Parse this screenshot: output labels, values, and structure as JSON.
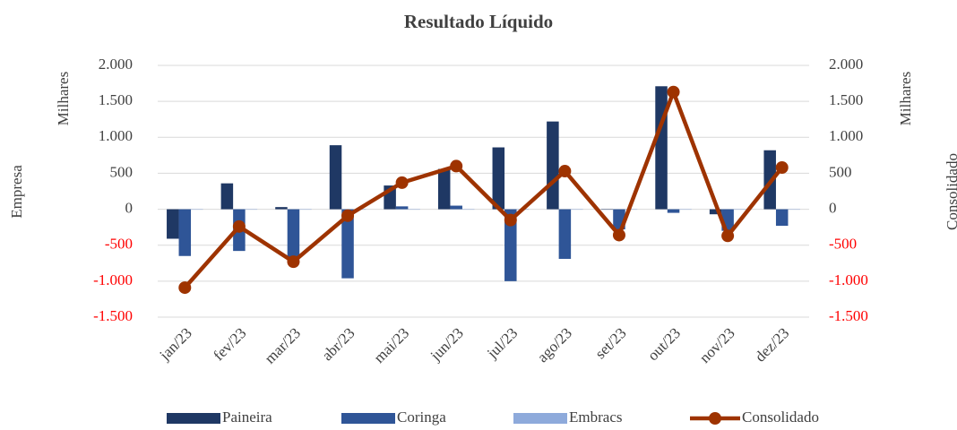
{
  "chart_data": {
    "type": "bar",
    "title": "Resultado Líquido",
    "ylabel": "Empresa",
    "y_unit": "Milhares",
    "y2label": "Consolidado",
    "y2_unit": "Milhares",
    "categories": [
      "jan/23",
      "fev/23",
      "mar/23",
      "abr/23",
      "mai/23",
      "jun/23",
      "jul/23",
      "ago/23",
      "set/23",
      "out/23",
      "nov/23",
      "dez/23"
    ],
    "series": [
      {
        "name": "Paineira",
        "color": "#1f3864",
        "type": "bar",
        "values": [
          -410,
          360,
          30,
          890,
          330,
          560,
          860,
          1220,
          0,
          1710,
          -70,
          820
        ]
      },
      {
        "name": "Coringa",
        "color": "#2f5597",
        "type": "bar",
        "values": [
          -650,
          -580,
          -700,
          -960,
          40,
          50,
          -1000,
          -690,
          -280,
          -50,
          -300,
          -230
        ]
      },
      {
        "name": "Embracs",
        "color": "#8eaadb",
        "type": "bar",
        "values": [
          0,
          0,
          0,
          0,
          0,
          0,
          0,
          0,
          0,
          0,
          0,
          0
        ]
      },
      {
        "name": "Consolidado",
        "color": "#9e3300",
        "type": "line",
        "axis": "y2",
        "values": [
          -1090,
          -240,
          -730,
          -90,
          370,
          600,
          -150,
          530,
          -360,
          1630,
          -370,
          580
        ]
      }
    ],
    "ylim": [
      -1500,
      2000
    ],
    "yticks": [
      {
        "value": -1500,
        "label": "-1.500"
      },
      {
        "value": -1000,
        "label": "-1.000"
      },
      -500,
      0,
      500,
      {
        "value": 1000,
        "label": "1.000"
      },
      {
        "value": 1500,
        "label": "1.500"
      },
      {
        "value": 2000,
        "label": "2.000"
      }
    ],
    "y2lim": [
      -1500,
      2000
    ],
    "y2ticks": [
      {
        "value": -1500,
        "label": "-1.500"
      },
      {
        "value": -1000,
        "label": "-1.000"
      },
      -500,
      0,
      500,
      {
        "value": 1000,
        "label": "1.000"
      },
      {
        "value": 1500,
        "label": "1.500"
      },
      {
        "value": 2000,
        "label": "2.000"
      }
    ],
    "negative_tick_color": "#ff0000",
    "grid": true,
    "legend": "bottom"
  }
}
